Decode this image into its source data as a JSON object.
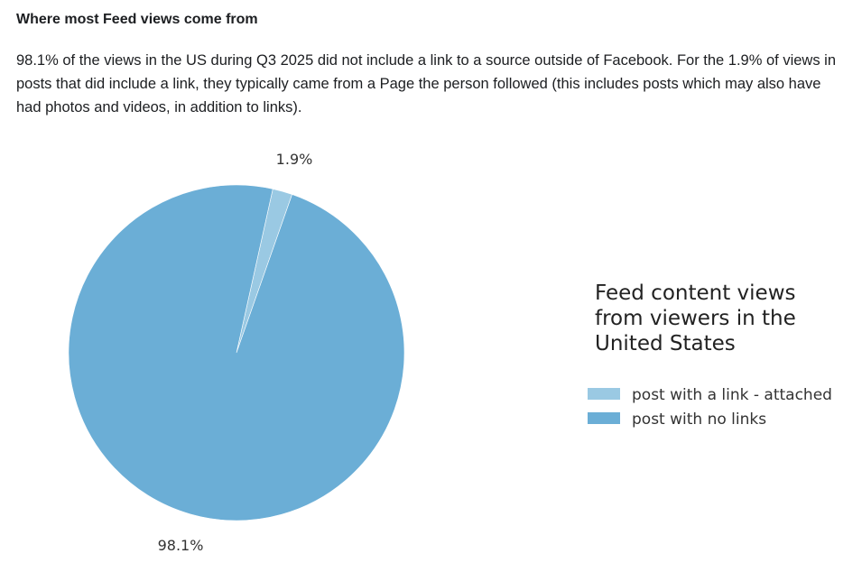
{
  "heading": "Where most Feed views come from",
  "description": "98.1% of the views in the US during Q3 2025 did not include a link to a source outside of Facebook. For the 1.9% of views in posts that did include a link, they typically came from a Page the person followed (this includes posts which may also have had photos and videos, in addition to links).",
  "chart_data": {
    "type": "pie",
    "legend_title": [
      "Feed content views",
      "from viewers in the",
      "United States"
    ],
    "legend_placement": "right",
    "slices": [
      {
        "label": "post with a link - attached",
        "value": 1.9,
        "value_label": "1.9%",
        "color": "#9ac9e3"
      },
      {
        "label": "post with no links",
        "value": 98.1,
        "value_label": "98.1%",
        "color": "#6baed6"
      }
    ]
  }
}
